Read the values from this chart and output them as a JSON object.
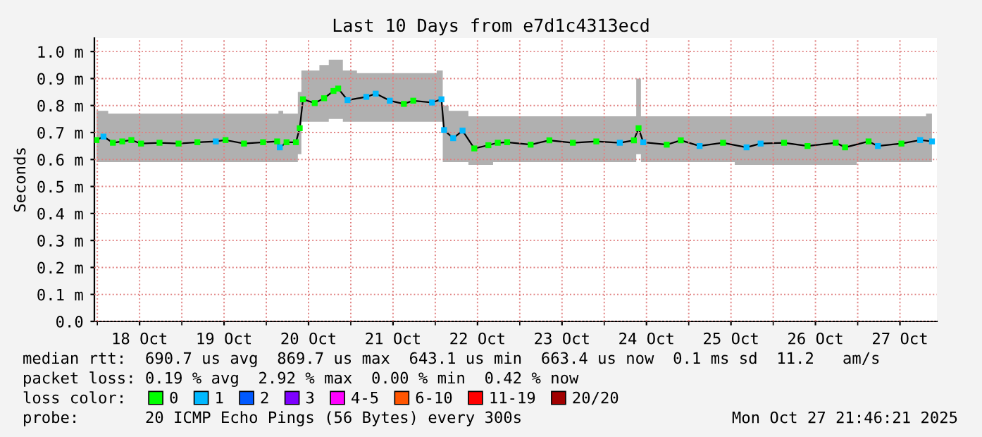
{
  "chart_data": {
    "type": "line",
    "title": "Last 10 Days from e7d1c4313ecd",
    "ylabel": "Seconds",
    "legend_title": "loss color:",
    "legend": "bottom",
    "grid": true,
    "line_style": "solid",
    "xlim": [
      "2025-10-17T23:10",
      "2025-10-27T22:30"
    ],
    "xticks": [
      {
        "value": "2025-10-18T00:00",
        "label": null
      },
      {
        "value": "2025-10-18T12:00",
        "label": "18 Oct"
      },
      {
        "value": "2025-10-19T00:00",
        "label": null
      },
      {
        "value": "2025-10-19T12:00",
        "label": "19 Oct"
      },
      {
        "value": "2025-10-20T00:00",
        "label": null
      },
      {
        "value": "2025-10-20T12:00",
        "label": "20 Oct"
      },
      {
        "value": "2025-10-21T00:00",
        "label": null
      },
      {
        "value": "2025-10-21T12:00",
        "label": "21 Oct"
      },
      {
        "value": "2025-10-22T00:00",
        "label": null
      },
      {
        "value": "2025-10-22T12:00",
        "label": "22 Oct"
      },
      {
        "value": "2025-10-23T00:00",
        "label": null
      },
      {
        "value": "2025-10-23T12:00",
        "label": "23 Oct"
      },
      {
        "value": "2025-10-24T00:00",
        "label": null
      },
      {
        "value": "2025-10-24T12:00",
        "label": "24 Oct"
      },
      {
        "value": "2025-10-25T00:00",
        "label": null
      },
      {
        "value": "2025-10-25T12:00",
        "label": "25 Oct"
      },
      {
        "value": "2025-10-26T00:00",
        "label": null
      },
      {
        "value": "2025-10-26T12:00",
        "label": "26 Oct"
      },
      {
        "value": "2025-10-27T00:00",
        "label": null
      },
      {
        "value": "2025-10-27T12:00",
        "label": "27 Oct"
      }
    ],
    "ylim": [
      0,
      1.05
    ],
    "yticks": [
      {
        "value": 0,
        "label": "0.0"
      },
      {
        "value": 0.1,
        "label": "0.1 m"
      },
      {
        "value": 0.2,
        "label": "0.2 m"
      },
      {
        "value": 0.3,
        "label": "0.3 m"
      },
      {
        "value": 0.4,
        "label": "0.4 m"
      },
      {
        "value": 0.5,
        "label": "0.5 m"
      },
      {
        "value": 0.6,
        "label": "0.6 m"
      },
      {
        "value": 0.7,
        "label": "0.7 m"
      },
      {
        "value": 0.8,
        "label": "0.8 m"
      },
      {
        "value": 0.9,
        "label": "0.9 m"
      },
      {
        "value": 1.0,
        "label": "1.0 m"
      }
    ],
    "x": [
      "2025-10-17T23:45",
      "2025-10-18T01:45",
      "2025-10-18T04:25",
      "2025-10-18T07:05",
      "2025-10-18T09:40",
      "2025-10-18T12:25",
      "2025-10-18T17:40",
      "2025-10-18T23:05",
      "2025-10-19T04:25",
      "2025-10-19T09:40",
      "2025-10-19T12:25",
      "2025-10-19T17:40",
      "2025-10-19T23:05",
      "2025-10-20T03:05",
      "2025-10-20T03:50",
      "2025-10-20T05:45",
      "2025-10-20T08:25",
      "2025-10-20T09:30",
      "2025-10-20T10:25",
      "2025-10-20T13:45",
      "2025-10-20T16:25",
      "2025-10-20T19:05",
      "2025-10-20T20:25",
      "2025-10-20T23:05",
      "2025-10-21T04:25",
      "2025-10-21T07:05",
      "2025-10-21T11:05",
      "2025-10-21T15:05",
      "2025-10-21T17:45",
      "2025-10-21T23:05",
      "2025-10-22T01:45",
      "2025-10-22T02:30",
      "2025-10-22T05:05",
      "2025-10-22T07:45",
      "2025-10-22T11:05",
      "2025-10-22T15:05",
      "2025-10-22T17:45",
      "2025-10-22T20:25",
      "2025-10-23T03:05",
      "2025-10-23T08:25",
      "2025-10-23T15:05",
      "2025-10-23T21:45",
      "2025-10-24T04:25",
      "2025-10-24T08:25",
      "2025-10-24T09:45",
      "2025-10-24T11:05",
      "2025-10-24T17:45",
      "2025-10-24T21:45",
      "2025-10-25T03:05",
      "2025-10-25T09:45",
      "2025-10-25T16:25",
      "2025-10-25T20:25",
      "2025-10-26T03:05",
      "2025-10-26T09:45",
      "2025-10-26T17:45",
      "2025-10-26T20:25",
      "2025-10-27T03:05",
      "2025-10-27T05:45",
      "2025-10-27T12:25",
      "2025-10-27T17:45",
      "2025-10-27T21:05"
    ],
    "series": [
      {
        "color": "#000000",
        "marker": "none",
        "values": [
          0.672,
          0.685,
          0.662,
          0.667,
          0.672,
          0.659,
          0.662,
          0.659,
          0.664,
          0.667,
          0.672,
          0.659,
          0.664,
          0.667,
          0.645,
          0.664,
          0.664,
          0.716,
          0.823,
          0.809,
          0.827,
          0.854,
          0.863,
          0.82,
          0.832,
          0.844,
          0.818,
          0.806,
          0.818,
          0.811,
          0.823,
          0.709,
          0.679,
          0.707,
          0.641,
          0.653,
          0.662,
          0.664,
          0.655,
          0.671,
          0.662,
          0.667,
          0.662,
          0.671,
          0.716,
          0.664,
          0.655,
          0.671,
          0.65,
          0.662,
          0.645,
          0.659,
          0.662,
          0.65,
          0.662,
          0.645,
          0.667,
          0.65,
          0.659,
          0.672,
          0.667
        ],
        "lower": [
          0.59,
          0.59,
          0.59,
          0.59,
          0.59,
          0.59,
          0.59,
          0.59,
          0.59,
          0.59,
          0.59,
          0.59,
          0.59,
          0.59,
          0.59,
          0.59,
          0.59,
          0.62,
          0.74,
          0.74,
          0.74,
          0.75,
          0.75,
          0.74,
          0.74,
          0.74,
          0.74,
          0.74,
          0.74,
          0.74,
          0.74,
          0.59,
          0.59,
          0.59,
          0.58,
          0.58,
          0.59,
          0.59,
          0.59,
          0.59,
          0.59,
          0.59,
          0.59,
          0.59,
          0.62,
          0.59,
          0.59,
          0.59,
          0.59,
          0.59,
          0.58,
          0.58,
          0.58,
          0.58,
          0.58,
          0.58,
          0.59,
          0.59,
          0.59,
          0.59,
          0.59
        ],
        "upper": [
          0.78,
          0.78,
          0.77,
          0.77,
          0.77,
          0.77,
          0.77,
          0.77,
          0.77,
          0.77,
          0.77,
          0.77,
          0.77,
          0.77,
          0.78,
          0.77,
          0.77,
          0.85,
          0.93,
          0.93,
          0.95,
          0.97,
          0.97,
          0.93,
          0.92,
          0.92,
          0.92,
          0.92,
          0.92,
          0.92,
          0.93,
          0.8,
          0.78,
          0.78,
          0.76,
          0.76,
          0.76,
          0.76,
          0.76,
          0.76,
          0.76,
          0.76,
          0.76,
          0.76,
          0.9,
          0.76,
          0.76,
          0.76,
          0.76,
          0.76,
          0.76,
          0.76,
          0.76,
          0.76,
          0.76,
          0.76,
          0.76,
          0.76,
          0.76,
          0.76,
          0.77
        ]
      },
      {
        "type": "scatter",
        "name": "0",
        "color": "#00ff00",
        "marker": "square",
        "x": [
          "2025-10-17T23:45",
          "2025-10-18T04:25",
          "2025-10-18T07:05",
          "2025-10-18T09:40",
          "2025-10-18T12:25",
          "2025-10-18T17:40",
          "2025-10-18T23:05",
          "2025-10-19T04:25",
          "2025-10-19T12:25",
          "2025-10-19T17:40",
          "2025-10-19T23:05",
          "2025-10-20T03:05",
          "2025-10-20T05:45",
          "2025-10-20T08:25",
          "2025-10-20T09:30",
          "2025-10-20T10:25",
          "2025-10-20T13:45",
          "2025-10-20T16:25",
          "2025-10-20T19:05",
          "2025-10-20T20:25",
          "2025-10-21T15:05",
          "2025-10-21T17:45",
          "2025-10-22T11:05",
          "2025-10-22T15:05",
          "2025-10-22T17:45",
          "2025-10-22T20:25",
          "2025-10-23T03:05",
          "2025-10-23T08:25",
          "2025-10-23T15:05",
          "2025-10-23T21:45",
          "2025-10-24T08:25",
          "2025-10-24T09:45",
          "2025-10-24T17:45",
          "2025-10-24T21:45",
          "2025-10-25T09:45",
          "2025-10-26T03:05",
          "2025-10-26T09:45",
          "2025-10-26T17:45",
          "2025-10-26T20:25",
          "2025-10-27T03:05",
          "2025-10-27T12:25"
        ],
        "values": [
          0.672,
          0.662,
          0.667,
          0.672,
          0.659,
          0.662,
          0.659,
          0.664,
          0.672,
          0.659,
          0.664,
          0.667,
          0.664,
          0.664,
          0.716,
          0.823,
          0.809,
          0.827,
          0.854,
          0.863,
          0.806,
          0.818,
          0.641,
          0.653,
          0.662,
          0.664,
          0.655,
          0.671,
          0.662,
          0.667,
          0.671,
          0.716,
          0.655,
          0.671,
          0.662,
          0.662,
          0.65,
          0.662,
          0.645,
          0.667,
          0.659
        ]
      },
      {
        "type": "scatter",
        "name": "1",
        "color": "#00b8ff",
        "marker": "square",
        "x": [
          "2025-10-18T01:45",
          "2025-10-19T09:40",
          "2025-10-20T03:50",
          "2025-10-20T23:05",
          "2025-10-21T04:25",
          "2025-10-21T07:05",
          "2025-10-21T11:05",
          "2025-10-21T23:05",
          "2025-10-22T01:45",
          "2025-10-22T02:30",
          "2025-10-22T05:05",
          "2025-10-22T07:45",
          "2025-10-24T04:25",
          "2025-10-24T11:05",
          "2025-10-25T03:05",
          "2025-10-25T16:25",
          "2025-10-25T20:25",
          "2025-10-27T05:45",
          "2025-10-27T17:45",
          "2025-10-27T21:05"
        ],
        "values": [
          0.685,
          0.667,
          0.645,
          0.82,
          0.832,
          0.844,
          0.818,
          0.811,
          0.823,
          0.709,
          0.679,
          0.707,
          0.662,
          0.664,
          0.65,
          0.645,
          0.659,
          0.65,
          0.672,
          0.667
        ]
      },
      {
        "type": "scatter",
        "name": "2",
        "color": "#0059ff",
        "values": [
          null,
          null,
          null,
          null,
          null,
          null,
          null,
          null,
          null,
          null,
          null,
          null,
          null,
          null,
          null,
          null,
          null,
          null,
          null,
          null,
          null,
          null,
          null,
          null,
          null,
          null,
          null,
          null,
          null,
          null,
          null,
          null,
          null,
          null,
          null,
          null,
          null,
          null,
          null,
          null,
          null,
          null,
          null,
          null,
          null,
          null,
          null,
          null,
          null,
          null,
          null,
          null,
          null,
          null,
          null,
          null,
          null,
          null,
          null,
          null,
          null
        ]
      },
      {
        "type": "scatter",
        "name": "3",
        "color": "#7e00ff",
        "values": [
          null,
          null,
          null,
          null,
          null,
          null,
          null,
          null,
          null,
          null,
          null,
          null,
          null,
          null,
          null,
          null,
          null,
          null,
          null,
          null,
          null,
          null,
          null,
          null,
          null,
          null,
          null,
          null,
          null,
          null,
          null,
          null,
          null,
          null,
          null,
          null,
          null,
          null,
          null,
          null,
          null,
          null,
          null,
          null,
          null,
          null,
          null,
          null,
          null,
          null,
          null,
          null,
          null,
          null,
          null,
          null,
          null,
          null,
          null,
          null,
          null
        ]
      },
      {
        "type": "scatter",
        "name": "4-5",
        "color": "#ff00ff",
        "values": [
          null,
          null,
          null,
          null,
          null,
          null,
          null,
          null,
          null,
          null,
          null,
          null,
          null,
          null,
          null,
          null,
          null,
          null,
          null,
          null,
          null,
          null,
          null,
          null,
          null,
          null,
          null,
          null,
          null,
          null,
          null,
          null,
          null,
          null,
          null,
          null,
          null,
          null,
          null,
          null,
          null,
          null,
          null,
          null,
          null,
          null,
          null,
          null,
          null,
          null,
          null,
          null,
          null,
          null,
          null,
          null,
          null,
          null,
          null,
          null,
          null
        ]
      },
      {
        "type": "scatter",
        "name": "6-10",
        "color": "#ff5500",
        "values": [
          null,
          null,
          null,
          null,
          null,
          null,
          null,
          null,
          null,
          null,
          null,
          null,
          null,
          null,
          null,
          null,
          null,
          null,
          null,
          null,
          null,
          null,
          null,
          null,
          null,
          null,
          null,
          null,
          null,
          null,
          null,
          null,
          null,
          null,
          null,
          null,
          null,
          null,
          null,
          null,
          null,
          null,
          null,
          null,
          null,
          null,
          null,
          null,
          null,
          null,
          null,
          null,
          null,
          null,
          null,
          null,
          null,
          null,
          null,
          null,
          null
        ]
      },
      {
        "type": "scatter",
        "name": "11-19",
        "color": "#ff0000",
        "values": [
          null,
          null,
          null,
          null,
          null,
          null,
          null,
          null,
          null,
          null,
          null,
          null,
          null,
          null,
          null,
          null,
          null,
          null,
          null,
          null,
          null,
          null,
          null,
          null,
          null,
          null,
          null,
          null,
          null,
          null,
          null,
          null,
          null,
          null,
          null,
          null,
          null,
          null,
          null,
          null,
          null,
          null,
          null,
          null,
          null,
          null,
          null,
          null,
          null,
          null,
          null,
          null,
          null,
          null,
          null,
          null,
          null,
          null,
          null,
          null,
          null
        ]
      },
      {
        "type": "scatter",
        "name": "20/20",
        "color": "#a10000",
        "values": [
          null,
          null,
          null,
          null,
          null,
          null,
          null,
          null,
          null,
          null,
          null,
          null,
          null,
          null,
          null,
          null,
          null,
          null,
          null,
          null,
          null,
          null,
          null,
          null,
          null,
          null,
          null,
          null,
          null,
          null,
          null,
          null,
          null,
          null,
          null,
          null,
          null,
          null,
          null,
          null,
          null,
          null,
          null,
          null,
          null,
          null,
          null,
          null,
          null,
          null,
          null,
          null,
          null,
          null,
          null,
          null,
          null,
          null,
          null,
          null,
          null
        ]
      }
    ],
    "annotations": [
      "median rtt:  690.7 us avg  869.7 us max  643.1 us min  663.4 us now  0.1 ms sd  11.2   am/s",
      "packet loss: 0.19 % avg  2.92 % max  0.00 % min  0.42 % now",
      "probe:       20 ICMP Echo Pings (56 Bytes) every 300s",
      "Mon Oct 27 21:46:21 2025"
    ]
  }
}
